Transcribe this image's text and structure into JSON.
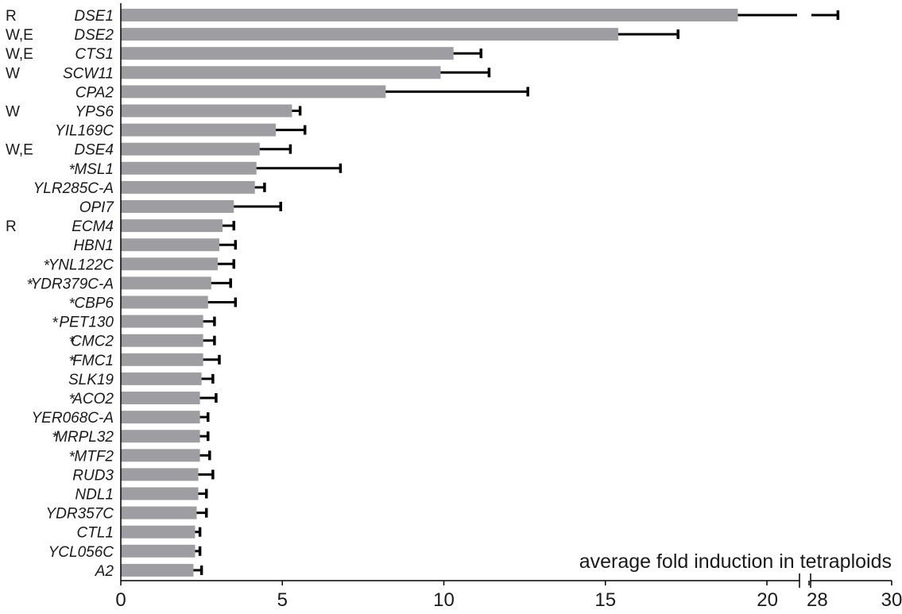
{
  "chart_data": {
    "type": "bar",
    "orientation": "horizontal",
    "xlabel": "average fold induction in tetraploids",
    "xlim": [
      0,
      30
    ],
    "axis_break": [
      21,
      28
    ],
    "x_ticks": [
      0,
      5,
      10,
      15,
      20,
      28,
      30
    ],
    "colors": {
      "bar": "#9e9ea2",
      "error": "#000000"
    },
    "categories": [
      "DSE1",
      "DSE2",
      "CTS1",
      "SCW11",
      "CPA2",
      "YPS6",
      "YIL169C",
      "DSE4",
      "MSL1",
      "YLR285C-A",
      "OPI7",
      "ECM4",
      "HBN1",
      "YNL122C",
      "YDR379C-A",
      "CBP6",
      "PET130",
      "CMC2",
      "FMC1",
      "SLK19",
      "ACO2",
      "YER068C-A",
      "MRPL32",
      "MTF2",
      "RUD3",
      "NDL1",
      "YDR357C",
      "CTL1",
      "YCL056C",
      "A2"
    ],
    "annotations": [
      "R",
      "W,E",
      "W,E",
      "W",
      "",
      "W",
      "",
      "W,E",
      "*",
      "",
      "",
      "R",
      "",
      "*",
      "*",
      "*",
      "*",
      "*",
      "*",
      "",
      "*",
      "",
      "*",
      "*",
      "",
      "",
      "",
      "",
      "",
      ""
    ],
    "values": [
      19.1,
      15.4,
      10.3,
      9.9,
      8.2,
      5.3,
      4.8,
      4.3,
      4.2,
      4.15,
      3.5,
      3.15,
      3.05,
      3.0,
      2.8,
      2.7,
      2.55,
      2.55,
      2.55,
      2.5,
      2.45,
      2.45,
      2.45,
      2.45,
      2.4,
      2.4,
      2.35,
      2.3,
      2.3,
      2.25
    ],
    "error": [
      9.6,
      1.85,
      0.85,
      1.5,
      4.4,
      0.25,
      0.9,
      0.95,
      2.6,
      0.3,
      1.45,
      0.35,
      0.5,
      0.5,
      0.6,
      0.85,
      0.35,
      0.35,
      0.5,
      0.35,
      0.5,
      0.25,
      0.25,
      0.3,
      0.45,
      0.25,
      0.3,
      0.15,
      0.15,
      0.25
    ]
  }
}
